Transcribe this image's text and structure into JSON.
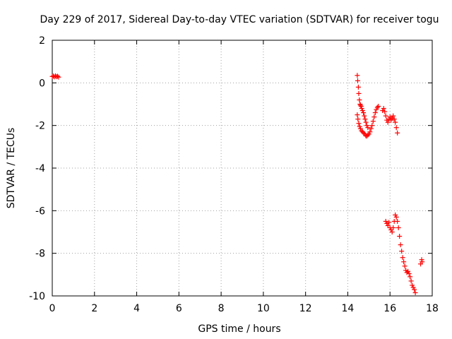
{
  "chart_data": {
    "type": "scatter",
    "title": "Day 229 of 2017, Sidereal Day-to-day VTEC variation (SDTVAR) for receiver togu",
    "xlabel": "GPS time / hours",
    "ylabel": "SDTVAR / TECUs",
    "xlim": [
      0,
      18
    ],
    "ylim": [
      -10,
      2
    ],
    "xticks": [
      "0",
      "2",
      "4",
      "6",
      "8",
      "10",
      "12",
      "14",
      "16",
      "18"
    ],
    "yticks": [
      "-10",
      "-8",
      "-6",
      "-4",
      "-2",
      "0",
      "2"
    ],
    "grid": true,
    "marker": "+",
    "color": "#ff0000",
    "segments": [
      {
        "name": "start",
        "x": [
          0.0,
          0.05,
          0.1,
          0.15,
          0.2,
          0.25,
          0.3
        ],
        "y": [
          0.3,
          0.32,
          0.28,
          0.33,
          0.29,
          0.31,
          0.27
        ]
      },
      {
        "name": "arc-14h-descent",
        "x": [
          14.45,
          14.47,
          14.5,
          14.52,
          14.55,
          14.58,
          14.6,
          14.63,
          14.66,
          14.7,
          14.74,
          14.78,
          14.82,
          14.86,
          14.9,
          14.95
        ],
        "y": [
          0.35,
          0.1,
          -0.2,
          -0.5,
          -0.8,
          -1.0,
          -1.05,
          -1.1,
          -1.2,
          -1.3,
          -1.4,
          -1.55,
          -1.7,
          -1.85,
          -2.0,
          -2.1
        ]
      },
      {
        "name": "arc-14h-branch",
        "x": [
          14.45,
          14.48,
          14.52,
          14.56,
          14.6,
          14.65,
          14.7,
          14.75,
          14.8,
          14.85,
          14.9,
          14.95,
          15.0,
          15.05,
          15.1,
          15.15,
          15.2,
          15.25,
          15.3,
          15.35,
          15.4,
          15.45
        ],
        "y": [
          -1.5,
          -1.7,
          -1.9,
          -2.05,
          -2.15,
          -2.25,
          -2.3,
          -2.35,
          -2.4,
          -2.48,
          -2.5,
          -2.45,
          -2.4,
          -2.3,
          -2.15,
          -2.0,
          -1.8,
          -1.6,
          -1.4,
          -1.25,
          -1.15,
          -1.1
        ]
      },
      {
        "name": "arc-15.7h",
        "x": [
          15.65,
          15.7,
          15.75,
          15.8,
          15.85,
          15.9,
          15.95,
          16.0,
          16.05,
          16.1,
          16.15,
          16.2,
          16.25,
          16.3,
          16.35
        ],
        "y": [
          -1.3,
          -1.2,
          -1.35,
          -1.55,
          -1.75,
          -1.85,
          -1.7,
          -1.6,
          -1.75,
          -1.65,
          -1.55,
          -1.7,
          -1.85,
          -2.1,
          -2.35
        ]
      },
      {
        "name": "arc-15.8h-low",
        "x": [
          15.8,
          15.85,
          15.9,
          15.95,
          16.0,
          16.05,
          16.1,
          16.15,
          16.2,
          16.25,
          16.3,
          16.35,
          16.4,
          16.45,
          16.5,
          16.55,
          16.6,
          16.65,
          16.7,
          16.75,
          16.8,
          16.85,
          16.9,
          16.95,
          17.0,
          17.05,
          17.1,
          17.15,
          17.2
        ],
        "y": [
          -6.5,
          -6.6,
          -6.7,
          -6.55,
          -6.8,
          -6.9,
          -7.0,
          -6.8,
          -6.5,
          -6.2,
          -6.3,
          -6.5,
          -6.8,
          -7.2,
          -7.6,
          -7.9,
          -8.2,
          -8.4,
          -8.6,
          -8.8,
          -8.9,
          -8.85,
          -8.95,
          -9.1,
          -9.3,
          -9.5,
          -9.6,
          -9.7,
          -9.85
        ]
      },
      {
        "name": "end",
        "x": [
          17.45,
          17.5,
          17.52
        ],
        "y": [
          -8.5,
          -8.3,
          -8.4
        ]
      }
    ]
  }
}
